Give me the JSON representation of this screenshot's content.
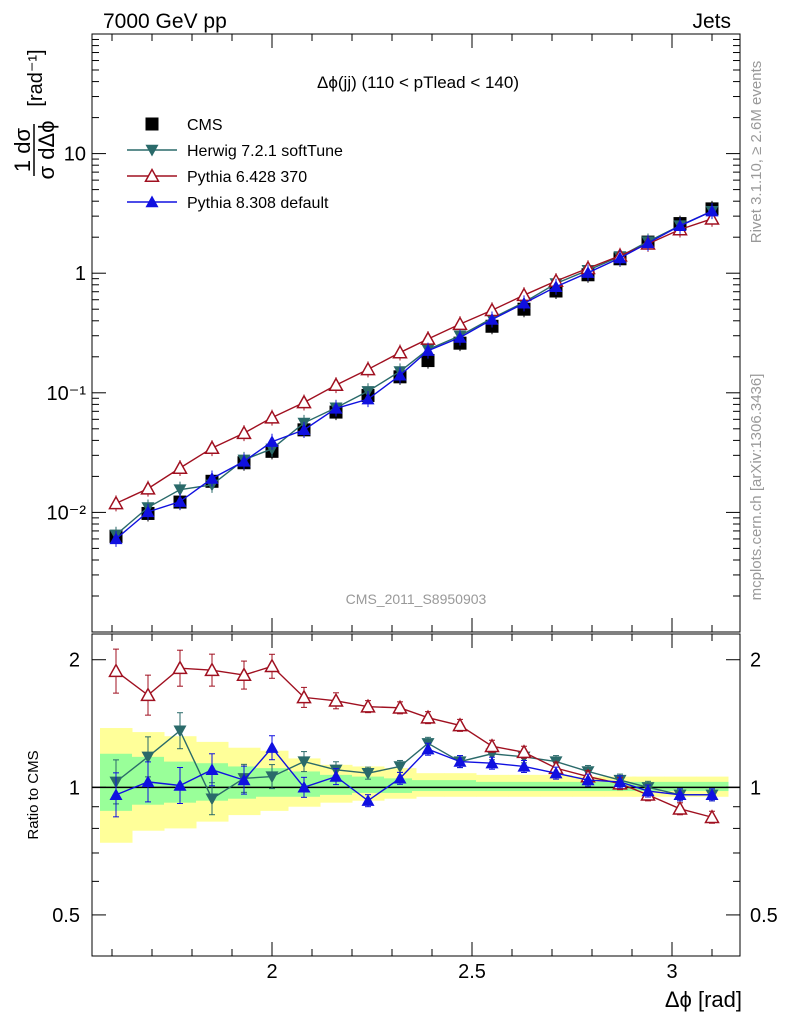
{
  "header": {
    "left": "7000 GeV pp",
    "right": "Jets"
  },
  "side_labels": {
    "rivet": "Rivet 3.1.10, ≥ 2.6M events",
    "mcplots": "mcplots.cern.ch [arXiv:1306.3436]"
  },
  "watermark": "CMS_2011_S8950903",
  "colors": {
    "cms": "#000000",
    "herwig": "#2a6a6a",
    "pythia6": "#a01020",
    "pythia8": "#1010e0",
    "band_outer": "#ffff99",
    "band_inner": "#99ff99"
  },
  "chart_data": [
    {
      "type": "line",
      "panel": "main",
      "title": "Δϕ(jj) (110 < pTlead <  140)",
      "ylabel": "1/σ dσ/dΔϕ [rad⁻¹]",
      "yscale": "log",
      "ylim": [
        0.001,
        100
      ],
      "xlim": [
        1.55,
        3.17
      ],
      "y_ticklabels": [
        "10⁻²",
        "10⁻¹",
        "1",
        "10"
      ],
      "legend_position": "top-left",
      "legend": [
        "CMS",
        "Herwig 7.2.1 softTune",
        "Pythia 6.428 370",
        "Pythia 8.308 default"
      ],
      "x": [
        1.61,
        1.69,
        1.77,
        1.85,
        1.93,
        2.0,
        2.08,
        2.16,
        2.24,
        2.32,
        2.39,
        2.47,
        2.55,
        2.63,
        2.71,
        2.79,
        2.87,
        2.94,
        3.02,
        3.1
      ],
      "series": [
        {
          "name": "CMS",
          "marker": "square",
          "values": [
            0.0063,
            0.0098,
            0.0122,
            0.0182,
            0.026,
            0.0324,
            0.049,
            0.069,
            0.095,
            0.136,
            0.186,
            0.26,
            0.36,
            0.5,
            0.71,
            0.97,
            1.32,
            1.82,
            2.6,
            3.45
          ]
        },
        {
          "name": "Herwig 7.2.1 softTune",
          "marker": "triangle-down",
          "values": [
            0.0065,
            0.011,
            0.0155,
            0.017,
            0.0275,
            0.034,
            0.056,
            0.075,
            0.103,
            0.151,
            0.23,
            0.3,
            0.42,
            0.57,
            0.82,
            1.06,
            1.38,
            1.84,
            2.5,
            3.3
          ]
        },
        {
          "name": "Pythia 6.428 370",
          "marker": "triangle-open",
          "values": [
            0.0119,
            0.0158,
            0.0235,
            0.0345,
            0.046,
            0.062,
            0.083,
            0.116,
            0.157,
            0.217,
            0.282,
            0.375,
            0.49,
            0.655,
            0.86,
            1.1,
            1.4,
            1.76,
            2.32,
            2.85
          ]
        },
        {
          "name": "Pythia 8.308 default",
          "marker": "triangle-up",
          "values": [
            0.006,
            0.0101,
            0.0123,
            0.0192,
            0.0267,
            0.039,
            0.049,
            0.074,
            0.0885,
            0.14,
            0.225,
            0.29,
            0.41,
            0.56,
            0.77,
            1.01,
            1.34,
            1.79,
            2.49,
            3.3
          ]
        }
      ]
    },
    {
      "type": "line",
      "panel": "ratio",
      "ylabel": "Ratio to CMS",
      "ylim": [
        0.4,
        2.3
      ],
      "xlim": [
        1.55,
        3.17
      ],
      "xlabel": "Δϕ [rad]",
      "y_ticklabels": [
        "0.5",
        "1",
        "2"
      ],
      "x_ticklabels": [
        "2",
        "2.5",
        "3"
      ],
      "x": [
        1.61,
        1.69,
        1.77,
        1.85,
        1.93,
        2.0,
        2.08,
        2.16,
        2.24,
        2.32,
        2.39,
        2.47,
        2.55,
        2.63,
        2.71,
        2.79,
        2.87,
        2.94,
        3.02,
        3.1
      ],
      "series": [
        {
          "name": "Herwig 7.2.1 softTune",
          "values": [
            1.03,
            1.18,
            1.36,
            0.94,
            1.05,
            1.06,
            1.15,
            1.1,
            1.08,
            1.12,
            1.27,
            1.15,
            1.2,
            1.18,
            1.15,
            1.09,
            1.04,
            1.0,
            0.96,
            0.96
          ]
        },
        {
          "name": "Pythia 6.428 370",
          "values": [
            1.88,
            1.65,
            1.91,
            1.89,
            1.84,
            1.93,
            1.63,
            1.6,
            1.55,
            1.54,
            1.46,
            1.4,
            1.25,
            1.21,
            1.11,
            1.06,
            1.02,
            0.96,
            0.89,
            0.85
          ]
        },
        {
          "name": "Pythia 8.308 default",
          "values": [
            0.96,
            1.03,
            1.01,
            1.1,
            1.04,
            1.24,
            1.0,
            1.06,
            0.93,
            1.05,
            1.23,
            1.15,
            1.14,
            1.12,
            1.08,
            1.04,
            1.03,
            0.98,
            0.96,
            0.96
          ]
        }
      ],
      "band_outer": [
        [
          0.74,
          1.38
        ],
        [
          0.79,
          1.35
        ],
        [
          0.8,
          1.32
        ],
        [
          0.83,
          1.28
        ],
        [
          0.86,
          1.24
        ],
        [
          0.88,
          1.22
        ],
        [
          0.9,
          1.17
        ],
        [
          0.92,
          1.13
        ],
        [
          0.93,
          1.12
        ],
        [
          0.94,
          1.11
        ],
        [
          0.95,
          1.08
        ],
        [
          0.95,
          1.08
        ],
        [
          0.95,
          1.07
        ],
        [
          0.95,
          1.07
        ],
        [
          0.95,
          1.07
        ],
        [
          0.95,
          1.06
        ],
        [
          0.95,
          1.06
        ],
        [
          0.95,
          1.06
        ],
        [
          0.95,
          1.06
        ],
        [
          0.95,
          1.06
        ]
      ],
      "band_inner": [
        [
          0.88,
          1.2
        ],
        [
          0.91,
          1.18
        ],
        [
          0.92,
          1.15
        ],
        [
          0.93,
          1.14
        ],
        [
          0.94,
          1.12
        ],
        [
          0.95,
          1.11
        ],
        [
          0.95,
          1.09
        ],
        [
          0.96,
          1.07
        ],
        [
          0.97,
          1.06
        ],
        [
          0.97,
          1.05
        ],
        [
          0.98,
          1.04
        ],
        [
          0.98,
          1.04
        ],
        [
          0.98,
          1.03
        ],
        [
          0.98,
          1.03
        ],
        [
          0.98,
          1.03
        ],
        [
          0.98,
          1.03
        ],
        [
          0.98,
          1.03
        ],
        [
          0.98,
          1.03
        ],
        [
          0.98,
          1.03
        ],
        [
          0.98,
          1.03
        ]
      ]
    }
  ]
}
